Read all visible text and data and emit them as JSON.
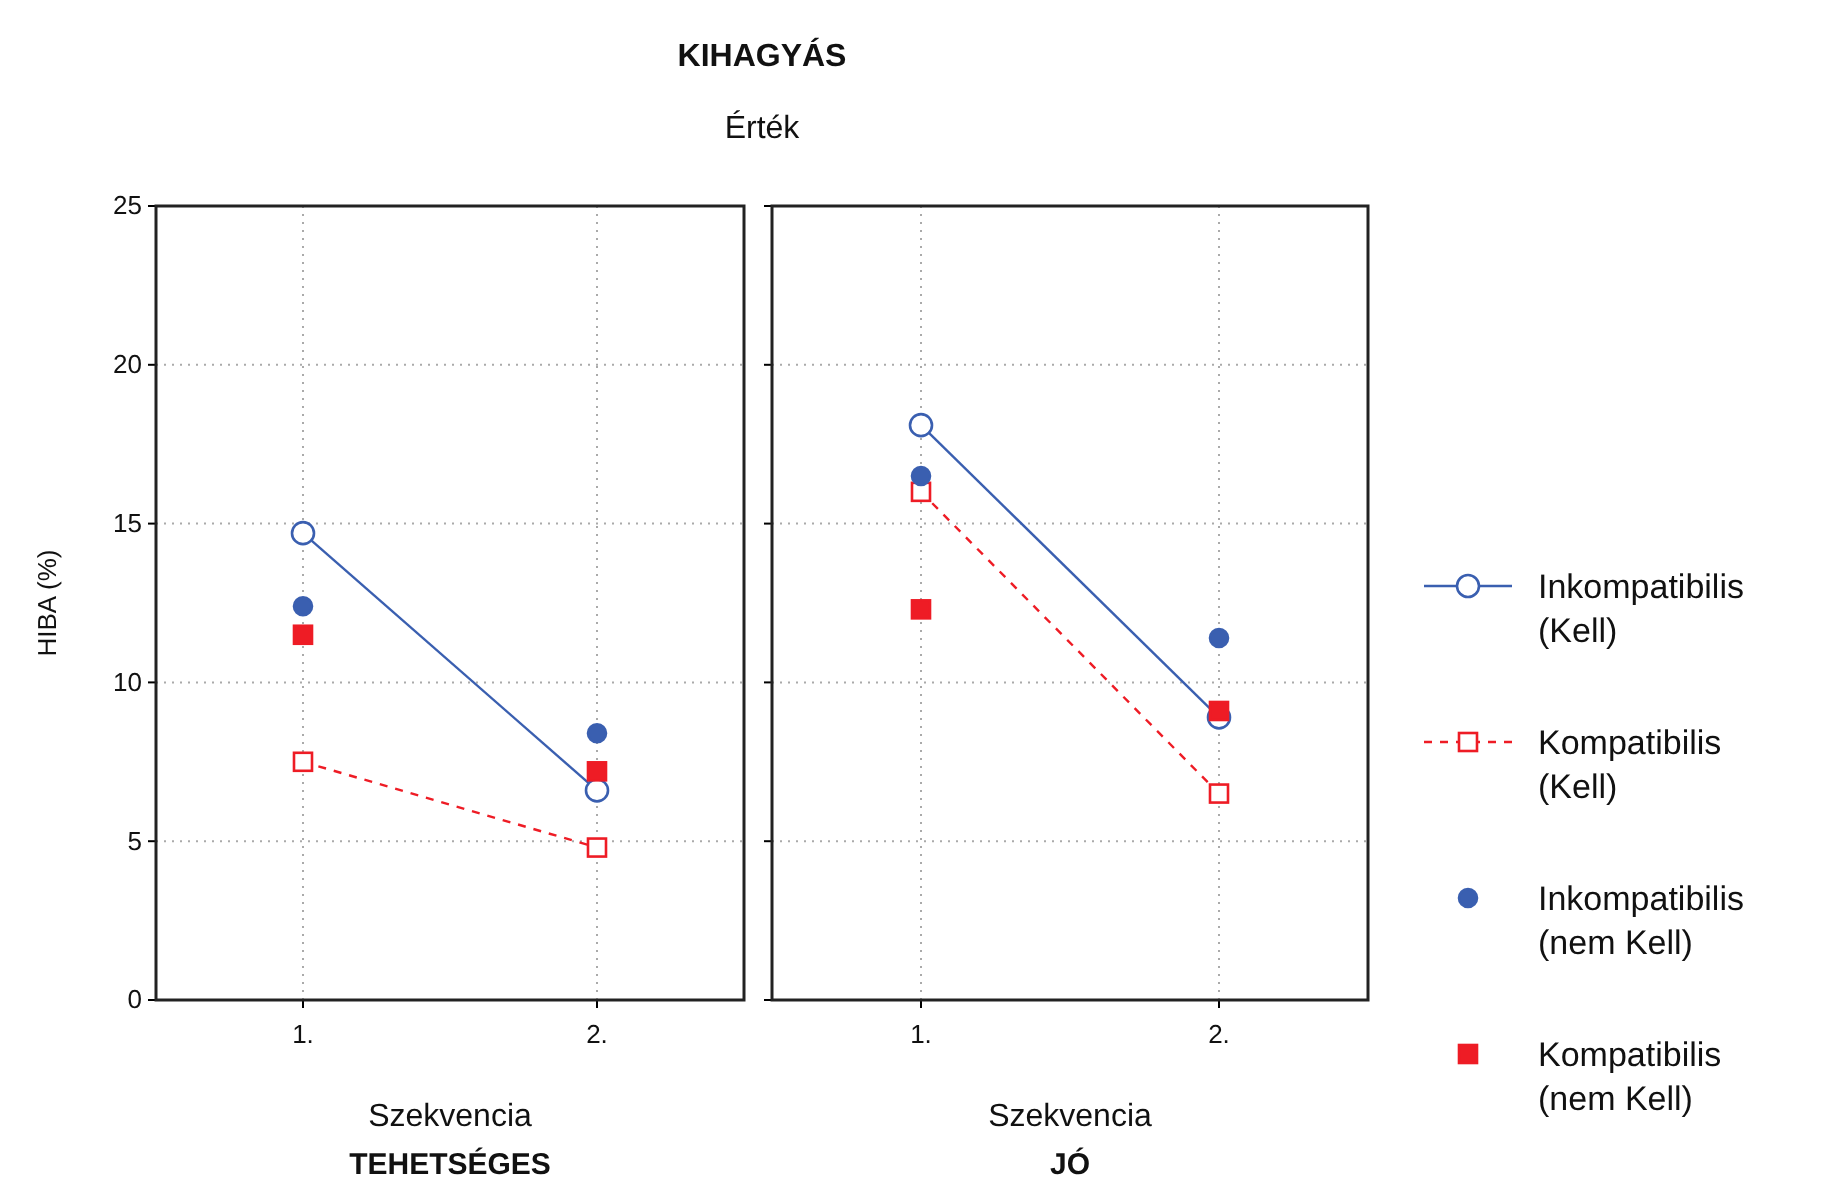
{
  "chart_data": [
    {
      "type": "line",
      "title": "KIHAGYÁS",
      "subtitle": "Érték",
      "xlabel": "Szekvencia",
      "ylabel": "HIBA (%)",
      "annotations": [
        "TEHETSÉGES"
      ],
      "categories": [
        "1.",
        "2."
      ],
      "ylim": [
        0,
        25
      ],
      "yticks": [
        0,
        5,
        10,
        15,
        20,
        25
      ],
      "grid": true,
      "series": [
        {
          "color": "#3a5fb0",
          "marker": "circle",
          "line_style": "solid",
          "values": [
            14.7,
            6.6
          ]
        },
        {
          "color": "#ee1c25",
          "marker": "square",
          "line_style": "dashed",
          "values": [
            7.5,
            4.8
          ]
        },
        {
          "type": "scatter",
          "color": "#3a5fb0",
          "marker": "circle",
          "values": [
            12.4,
            8.4
          ]
        },
        {
          "type": "scatter",
          "color": "#ee1c25",
          "marker": "square",
          "values": [
            11.5,
            7.2
          ]
        }
      ]
    },
    {
      "type": "line",
      "xlabel": "Szekvencia",
      "annotations": [
        "JÓ"
      ],
      "categories": [
        "1.",
        "2."
      ],
      "ylim": [
        0,
        25
      ],
      "yticks": [
        0,
        5,
        10,
        15,
        20,
        25
      ],
      "tick_labels": "x",
      "grid": true,
      "legend": "right",
      "series": [
        {
          "name": "Inkompatibilis (Kell)",
          "color": "#3a5fb0",
          "marker": "circle",
          "line_style": "solid",
          "values": [
            18.1,
            8.9
          ]
        },
        {
          "name": "Kompatibilis (Kell)",
          "color": "#ee1c25",
          "marker": "square",
          "line_style": "dashed",
          "values": [
            16.0,
            6.5
          ]
        },
        {
          "name": "Inkompatibilis (nem Kell)",
          "type": "scatter",
          "color": "#3a5fb0",
          "marker": "circle",
          "values": [
            16.5,
            11.4
          ]
        },
        {
          "name": "Kompatibilis (nem Kell)",
          "type": "scatter",
          "color": "#ee1c25",
          "marker": "square",
          "values": [
            12.3,
            9.1
          ]
        }
      ]
    }
  ]
}
